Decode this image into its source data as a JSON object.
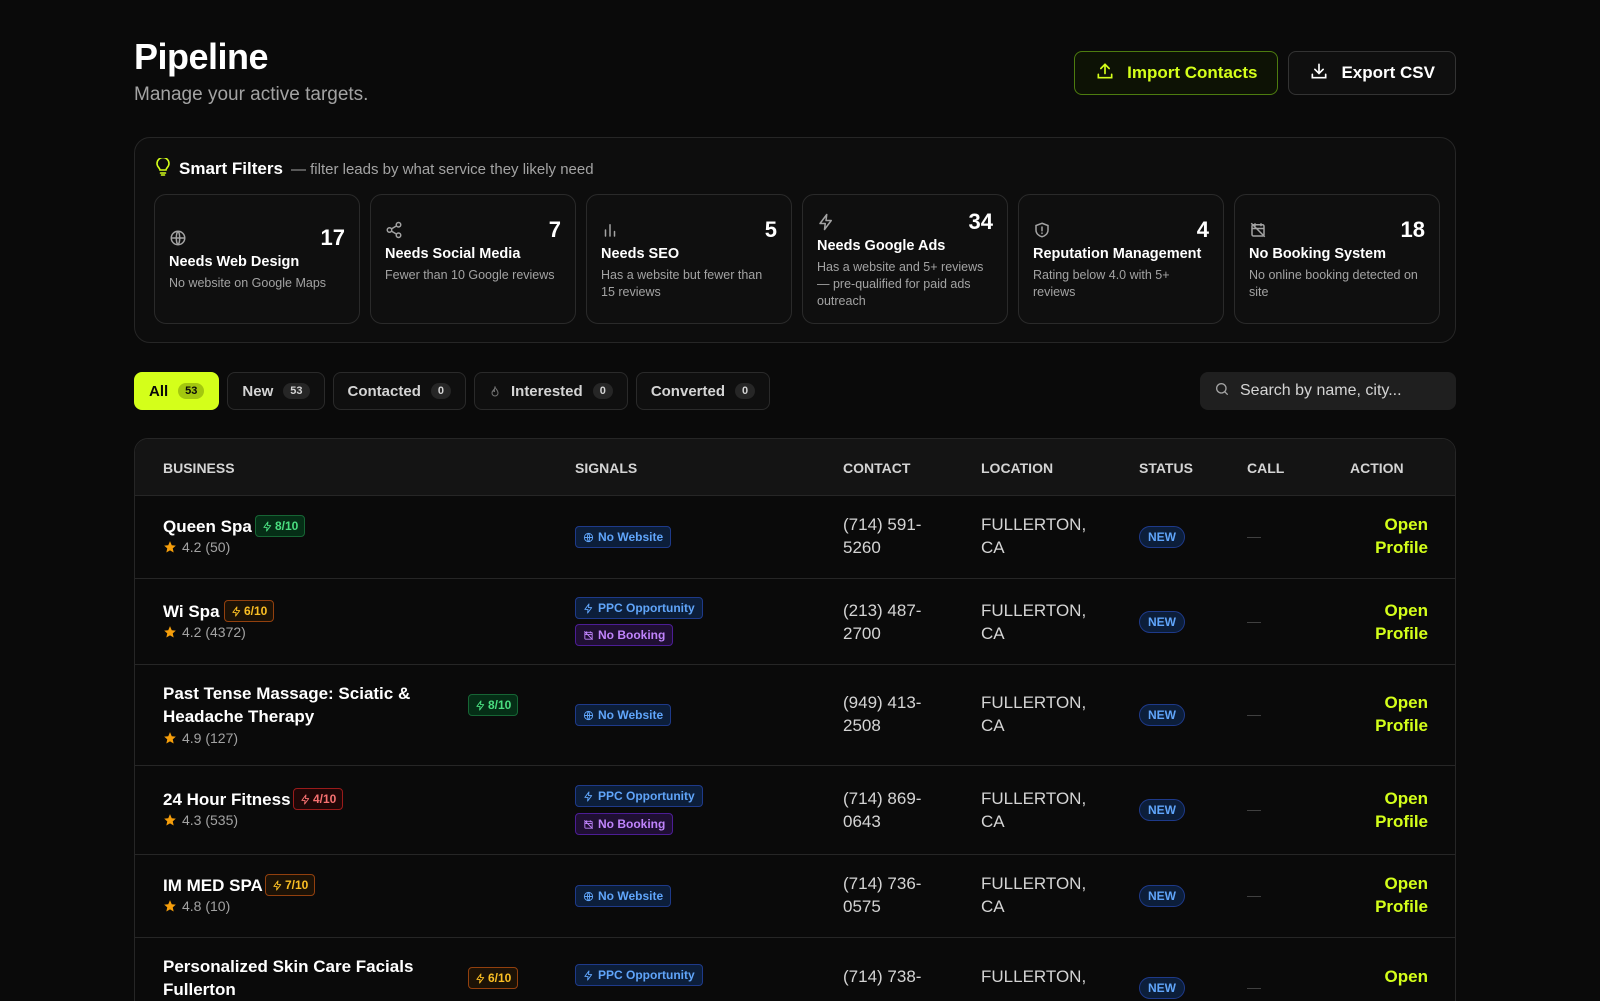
{
  "header": {
    "title": "Pipeline",
    "subtitle": "Manage your active targets.",
    "import_label": "Import Contacts",
    "export_label": "Export CSV"
  },
  "smart_filters": {
    "title": "Smart Filters",
    "hint": "— filter leads by what service they likely need",
    "cards": [
      {
        "icon": "globe-icon",
        "count": "17",
        "title": "Needs Web Design",
        "desc": "No website on Google Maps"
      },
      {
        "icon": "share-icon",
        "count": "7",
        "title": "Needs Social Media",
        "desc": "Fewer than 10 Google reviews"
      },
      {
        "icon": "bar-chart-icon",
        "count": "5",
        "title": "Needs SEO",
        "desc": "Has a website but fewer than 15 reviews"
      },
      {
        "icon": "bolt-icon",
        "count": "34",
        "title": "Needs Google Ads",
        "desc": "Has a website and 5+ reviews — pre-qualified for paid ads outreach"
      },
      {
        "icon": "shield-icon",
        "count": "4",
        "title": "Reputation Management",
        "desc": "Rating below 4.0 with 5+ reviews"
      },
      {
        "icon": "calendar-off-icon",
        "count": "18",
        "title": "No Booking System",
        "desc": "No online booking detected on site"
      }
    ]
  },
  "tabs": [
    {
      "label": "All",
      "count": "53"
    },
    {
      "label": "New",
      "count": "53"
    },
    {
      "label": "Contacted",
      "count": "0"
    },
    {
      "label": "Interested",
      "count": "0"
    },
    {
      "label": "Converted",
      "count": "0"
    }
  ],
  "search": {
    "placeholder": "Search by name, city..."
  },
  "table": {
    "columns": {
      "business": "BUSINESS",
      "signals": "SIGNALS",
      "contact": "CONTACT",
      "location": "LOCATION",
      "status": "STATUS",
      "call": "CALL",
      "action": "ACTION"
    },
    "action_label_1": "Open",
    "action_label_2": "Profile",
    "rows": [
      {
        "name": "Queen Spa",
        "score": "8/10",
        "rating": "4.2 (50)",
        "signals": [
          "No Website"
        ],
        "phone_1": "(714) 591-",
        "phone_2": "5260",
        "loc_1": "FULLERTON,",
        "loc_2": "CA",
        "status": "NEW"
      },
      {
        "name": "Wi Spa",
        "score": "6/10",
        "rating": "4.2 (4372)",
        "signals": [
          "PPC Opportunity",
          "No Booking"
        ],
        "phone_1": "(213) 487-",
        "phone_2": "2700",
        "loc_1": "FULLERTON,",
        "loc_2": "CA",
        "status": "NEW"
      },
      {
        "name_1": "Past Tense Massage: Sciatic &",
        "name_2": "Headache Therapy",
        "score": "8/10",
        "rating": "4.9 (127)",
        "signals": [
          "No Website"
        ],
        "phone_1": "(949) 413-",
        "phone_2": "2508",
        "loc_1": "FULLERTON,",
        "loc_2": "CA",
        "status": "NEW"
      },
      {
        "name": "24 Hour Fitness",
        "score": "4/10",
        "rating": "4.3 (535)",
        "signals": [
          "PPC Opportunity",
          "No Booking"
        ],
        "phone_1": "(714) 869-",
        "phone_2": "0643",
        "loc_1": "FULLERTON,",
        "loc_2": "CA",
        "status": "NEW"
      },
      {
        "name": "IM MED SPA",
        "score": "7/10",
        "rating": "4.8 (10)",
        "signals": [
          "No Website"
        ],
        "phone_1": "(714) 736-",
        "phone_2": "0575",
        "loc_1": "FULLERTON,",
        "loc_2": "CA",
        "status": "NEW"
      },
      {
        "name_1": "Personalized Skin Care Facials",
        "name_2": "Fullerton",
        "score": "6/10",
        "signals": [
          "PPC Opportunity"
        ],
        "phone_1": "(714) 738-",
        "loc_1": "FULLERTON,",
        "status": "NEW"
      }
    ]
  },
  "colors": {
    "accent": "#d4ff1a",
    "background": "#0a0a0a",
    "status_blue": "#60a5fa",
    "score_green": "#4ade80",
    "score_orange": "#fbbf24",
    "score_red": "#f87171"
  }
}
